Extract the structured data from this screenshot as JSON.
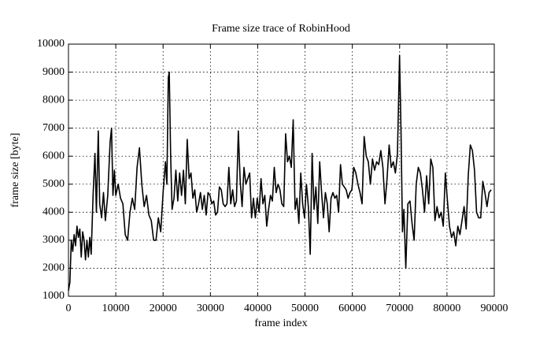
{
  "chart_data": {
    "type": "line",
    "title": "Frame size trace of RobinHood",
    "x_label": "frame index",
    "y_label": "frame size [byte]",
    "x": [
      0,
      300,
      600,
      900,
      1200,
      1500,
      1800,
      2100,
      2400,
      2700,
      3000,
      3300,
      3600,
      3900,
      4200,
      4500,
      4800,
      5200,
      5600,
      5900,
      6300,
      6600,
      7000,
      7400,
      7800,
      8300,
      8800,
      9100,
      9400,
      9700,
      10000,
      10500,
      11000,
      11500,
      12000,
      12500,
      13000,
      13500,
      14000,
      14500,
      15000,
      15500,
      16000,
      16500,
      17000,
      17500,
      18000,
      18500,
      19000,
      19500,
      20000,
      20500,
      20800,
      21100,
      21300,
      21600,
      21900,
      22300,
      22700,
      23100,
      23500,
      23900,
      24300,
      24700,
      25100,
      25500,
      25900,
      26300,
      26700,
      27100,
      27500,
      27900,
      28300,
      28700,
      29100,
      29500,
      29900,
      30300,
      30700,
      31100,
      31500,
      31900,
      32300,
      32700,
      33100,
      33500,
      33900,
      34300,
      34700,
      35100,
      35500,
      35900,
      36300,
      36700,
      37100,
      37500,
      37900,
      38300,
      38700,
      39100,
      39500,
      39900,
      40300,
      40700,
      41100,
      41500,
      41900,
      42300,
      42700,
      43100,
      43500,
      43900,
      44300,
      44700,
      45100,
      45500,
      45900,
      46300,
      46700,
      47100,
      47500,
      47900,
      48300,
      48700,
      49100,
      49500,
      49900,
      50300,
      50700,
      51100,
      51500,
      51900,
      52300,
      52700,
      53100,
      53500,
      53900,
      54300,
      54700,
      55100,
      55500,
      55900,
      56300,
      56700,
      57100,
      57500,
      57900,
      58300,
      58700,
      59100,
      59500,
      59900,
      60300,
      60740,
      61180,
      61620,
      62060,
      62500,
      62940,
      63380,
      63820,
      64260,
      64700,
      65140,
      65580,
      66020,
      66460,
      66900,
      67340,
      67780,
      68220,
      68660,
      69100,
      69540,
      69980,
      70300,
      70600,
      70900,
      71300,
      71740,
      72180,
      72620,
      73060,
      73500,
      73940,
      74380,
      74820,
      75260,
      75700,
      76140,
      76580,
      77020,
      77460,
      77900,
      78340,
      78780,
      79220,
      79660,
      80100,
      80540,
      80980,
      81420,
      81860,
      82300,
      82740,
      83180,
      83620,
      84060,
      84500,
      84940,
      85380,
      85820,
      86260,
      86700,
      87140,
      87580,
      88020,
      88460,
      88900,
      89340
    ],
    "values": [
      1200,
      1500,
      3000,
      2600,
      3200,
      2800,
      3500,
      3100,
      3400,
      2400,
      3300,
      3000,
      2300,
      3000,
      2400,
      3100,
      2500,
      4600,
      6100,
      4000,
      6900,
      4300,
      3800,
      4700,
      3700,
      4600,
      6500,
      7000,
      4600,
      5500,
      4600,
      5000,
      4500,
      4300,
      3200,
      3000,
      4000,
      4500,
      4100,
      5600,
      6300,
      5000,
      4200,
      4600,
      3900,
      3700,
      3000,
      3000,
      3800,
      3300,
      4700,
      5800,
      5000,
      8800,
      9000,
      6000,
      4100,
      4500,
      5500,
      4400,
      5400,
      4600,
      5500,
      4300,
      6600,
      5200,
      5400,
      4500,
      4800,
      4000,
      4300,
      4700,
      4100,
      4600,
      3900,
      4700,
      4600,
      4300,
      4400,
      3900,
      4000,
      4900,
      4800,
      4300,
      4200,
      4300,
      5600,
      4300,
      4800,
      4200,
      4400,
      6900,
      5100,
      4200,
      5600,
      5000,
      5200,
      5400,
      3800,
      4500,
      3800,
      4500,
      4000,
      5200,
      4300,
      4600,
      3500,
      4100,
      4600,
      4400,
      5600,
      4700,
      5000,
      4800,
      4300,
      4200,
      6800,
      5800,
      6000,
      5600,
      7300,
      4100,
      4500,
      3600,
      5400,
      4300,
      3800,
      5000,
      4200,
      2500,
      6100,
      4100,
      4900,
      3600,
      5800,
      4700,
      3800,
      4700,
      4300,
      3300,
      4500,
      4700,
      4500,
      4600,
      4000,
      5700,
      5000,
      4900,
      4800,
      4500,
      4700,
      4800,
      5600,
      5400,
      5000,
      4700,
      4300,
      6700,
      6000,
      5800,
      5000,
      5900,
      5500,
      5800,
      5700,
      6200,
      5600,
      4300,
      5200,
      6400,
      5600,
      5800,
      5400,
      6100,
      9600,
      6800,
      3300,
      4100,
      2000,
      4300,
      4400,
      3600,
      3000,
      5000,
      5600,
      5400,
      4800,
      4000,
      5300,
      4300,
      5900,
      5600,
      3700,
      4200,
      3800,
      4000,
      3500,
      5400,
      4400,
      3500,
      3100,
      3300,
      2800,
      3500,
      3200,
      3700,
      4200,
      3400,
      5300,
      6400,
      6200,
      5500,
      4000,
      3800,
      3800,
      5100,
      4700,
      4200,
      4700,
      4800
    ],
    "color": "#000000",
    "xlim": [
      0,
      90000
    ],
    "xticks": [
      0,
      10000,
      20000,
      30000,
      40000,
      50000,
      60000,
      70000,
      80000,
      90000
    ],
    "ylim": [
      1000,
      10000
    ],
    "yticks": [
      1000,
      2000,
      3000,
      4000,
      5000,
      6000,
      7000,
      8000,
      9000,
      10000
    ],
    "grid": true
  }
}
